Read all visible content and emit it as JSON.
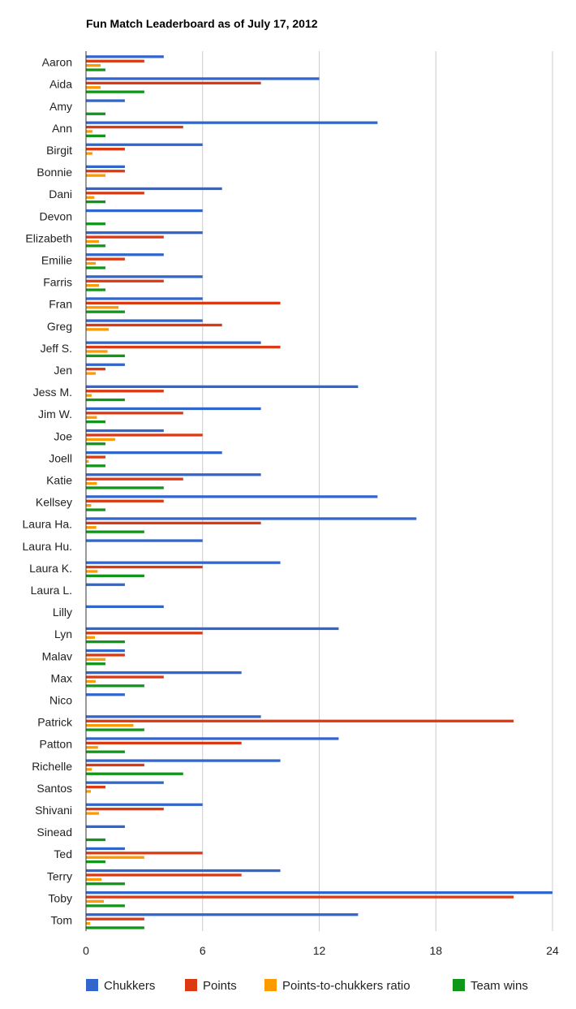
{
  "chart_data": {
    "type": "bar",
    "orientation": "horizontal",
    "title": "Fun Match Leaderboard as of July 17, 2012",
    "xlabel": "",
    "ylabel": "",
    "xlim": [
      0,
      24
    ],
    "x_ticks": [
      0,
      6,
      12,
      18,
      24
    ],
    "grid": true,
    "legend_position": "bottom",
    "categories": [
      "Aaron",
      "Aida",
      "Amy",
      "Ann",
      "Birgit",
      "Bonnie",
      "Dani",
      "Devon",
      "Elizabeth",
      "Emilie",
      "Farris",
      "Fran",
      "Greg",
      "Jeff S.",
      "Jen",
      "Jess M.",
      "Jim W.",
      "Joe",
      "Joell",
      "Katie",
      "Kellsey",
      "Laura Ha.",
      "Laura Hu.",
      "Laura K.",
      "Laura L.",
      "Lilly",
      "Lyn",
      "Malav",
      "Max",
      "Nico",
      "Patrick",
      "Patton",
      "Richelle",
      "Santos",
      "Shivani",
      "Sinead",
      "Ted",
      "Terry",
      "Toby",
      "Tom"
    ],
    "series": [
      {
        "name": "Chukkers",
        "color": "#3366cc",
        "values": [
          4,
          12,
          2,
          15,
          6,
          2,
          7,
          6,
          6,
          4,
          6,
          6,
          6,
          9,
          2,
          14,
          9,
          4,
          7,
          9,
          15,
          17,
          6,
          10,
          2,
          4,
          13,
          2,
          8,
          2,
          9,
          13,
          10,
          4,
          6,
          2,
          2,
          10,
          24,
          14
        ]
      },
      {
        "name": "Points",
        "color": "#dc3912",
        "values": [
          3,
          9,
          0,
          5,
          2,
          2,
          3,
          0,
          4,
          2,
          4,
          10,
          7,
          10,
          1,
          4,
          5,
          6,
          1,
          5,
          4,
          9,
          0,
          6,
          0,
          0,
          6,
          2,
          4,
          0,
          22,
          8,
          3,
          1,
          4,
          0,
          6,
          8,
          22,
          3
        ]
      },
      {
        "name": "Points-to-chukkers ratio",
        "color": "#ff9900",
        "values": [
          0.75,
          0.75,
          0,
          0.33,
          0.33,
          1,
          0.43,
          0,
          0.67,
          0.5,
          0.67,
          1.67,
          1.17,
          1.11,
          0.5,
          0.29,
          0.56,
          1.5,
          0.14,
          0.56,
          0.27,
          0.53,
          0,
          0.6,
          0,
          0,
          0.46,
          1,
          0.5,
          0,
          2.44,
          0.62,
          0.3,
          0.25,
          0.67,
          0,
          3,
          0.8,
          0.92,
          0.21
        ]
      },
      {
        "name": "Team wins",
        "color": "#109618",
        "values": [
          1,
          3,
          1,
          1,
          0,
          0,
          1,
          1,
          1,
          1,
          1,
          2,
          0,
          2,
          0,
          2,
          1,
          1,
          1,
          4,
          1,
          3,
          0,
          3,
          0,
          0,
          2,
          1,
          3,
          0,
          3,
          2,
          5,
          0,
          0,
          1,
          1,
          2,
          2,
          3
        ]
      }
    ]
  }
}
